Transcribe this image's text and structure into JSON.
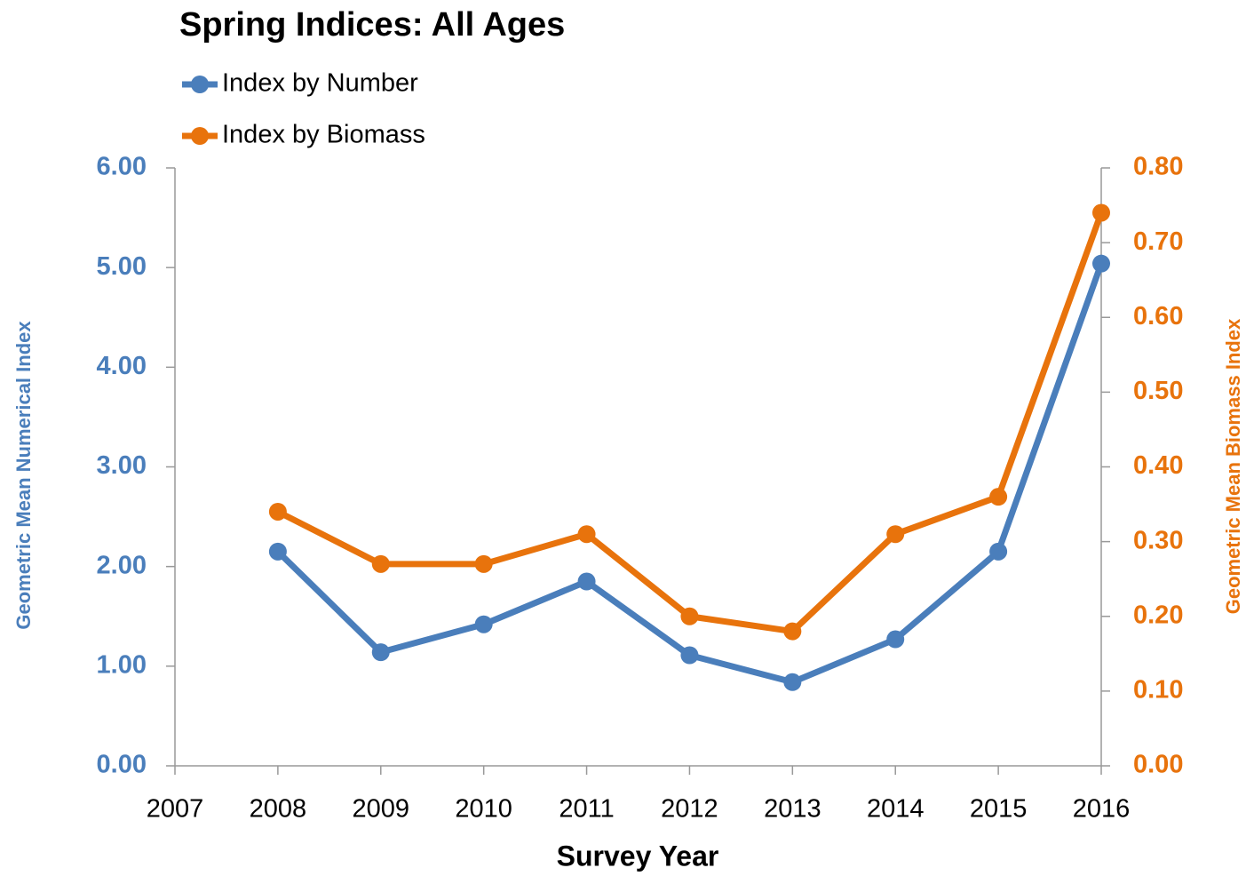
{
  "chart_data": {
    "type": "line",
    "title": "Spring Indices:  All Ages",
    "x_label": "Survey Year",
    "y_label": "Geometric Mean Numerical Index",
    "y2_label": "Geometric Mean Biomass Index",
    "x": [
      2008,
      2009,
      2010,
      2011,
      2012,
      2013,
      2014,
      2015,
      2016
    ],
    "series": [
      {
        "name": "Index by Number",
        "color": "#4a7ebb",
        "values": [
          2.15,
          1.14,
          1.42,
          1.85,
          1.11,
          0.84,
          1.27,
          2.15,
          5.04
        ]
      },
      {
        "name": "Index by Biomass",
        "color": "#e8730c",
        "axis": "y2",
        "values": [
          0.34,
          0.27,
          0.27,
          0.31,
          0.2,
          0.18,
          0.31,
          0.36,
          0.74
        ]
      }
    ],
    "xlim": [
      2007,
      2016
    ],
    "xticks": [
      2007,
      2008,
      2009,
      2010,
      2011,
      2012,
      2013,
      2014,
      2015,
      2016
    ],
    "ylim": [
      0,
      6
    ],
    "yticks": [
      {
        "value": 0,
        "label": "0.00"
      },
      {
        "value": 1,
        "label": "1.00"
      },
      {
        "value": 2,
        "label": "2.00"
      },
      {
        "value": 3,
        "label": "3.00"
      },
      {
        "value": 4,
        "label": "4.00"
      },
      {
        "value": 5,
        "label": "5.00"
      },
      {
        "value": 6,
        "label": "6.00"
      }
    ],
    "y2lim": [
      0,
      0.8
    ],
    "y2ticks": [
      {
        "value": 0,
        "label": "0.00"
      },
      {
        "value": 0.1,
        "label": "0.10"
      },
      {
        "value": 0.2,
        "label": "0.20"
      },
      {
        "value": 0.3,
        "label": "0.30"
      },
      {
        "value": 0.4,
        "label": "0.40"
      },
      {
        "value": 0.5,
        "label": "0.50"
      },
      {
        "value": 0.6,
        "label": "0.60"
      },
      {
        "value": 0.7,
        "label": "0.70"
      },
      {
        "value": 0.8,
        "label": "0.80"
      }
    ],
    "legend": "top-left",
    "grid": false
  }
}
